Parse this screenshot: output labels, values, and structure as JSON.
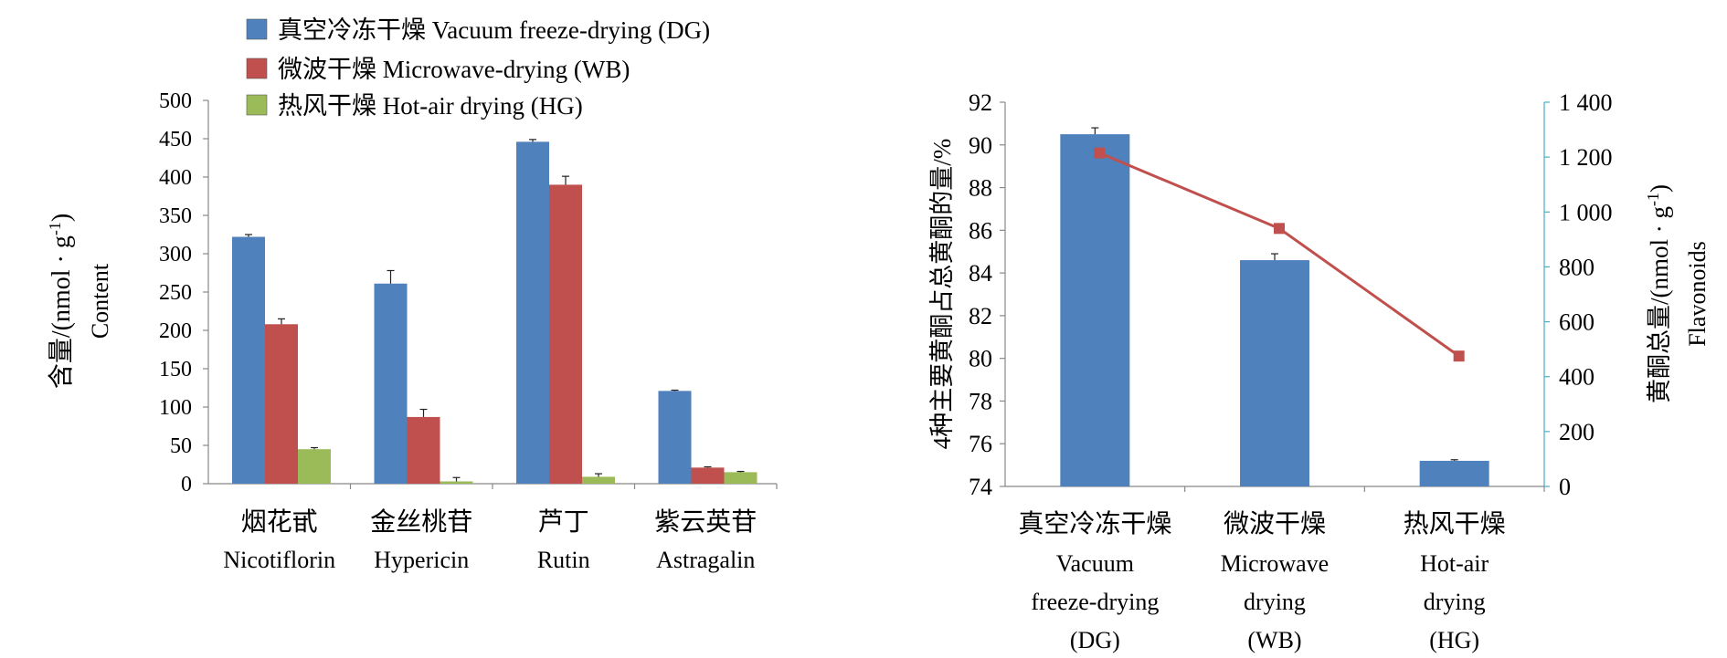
{
  "colors": {
    "dg": "#4f81bd",
    "wb": "#c0504d",
    "hg": "#9bbb59",
    "line": "#c0504d",
    "axis": "#888888",
    "right_axis": "#4bacc6"
  },
  "chart_data": [
    {
      "type": "bar",
      "xlabel": "",
      "ylabel_cn": "含量/(nmol · g-1)",
      "ylabel_en": "Content",
      "ylim": [
        0,
        500
      ],
      "yticks": [
        "0",
        "50",
        "100",
        "150",
        "200",
        "250",
        "300",
        "350",
        "400",
        "450",
        "500"
      ],
      "legend_position": "top",
      "categories": [
        {
          "cn": "烟花甙",
          "en": "Nicotiflorin"
        },
        {
          "cn": "金丝桃苷",
          "en": "Hypericin"
        },
        {
          "cn": "芦丁",
          "en": "Rutin"
        },
        {
          "cn": "紫云英苷",
          "en": "Astragalin"
        }
      ],
      "series": [
        {
          "name": "真空冷冻干燥 Vacuum freeze-drying (DG)",
          "key": "dg",
          "values": [
            322,
            261,
            446,
            121
          ],
          "errors": [
            3,
            17,
            3,
            1
          ]
        },
        {
          "name": "微波干燥 Microwave-drying (WB)",
          "key": "wb",
          "values": [
            208,
            87,
            390,
            21
          ],
          "errors": [
            7,
            10,
            11,
            1
          ]
        },
        {
          "name": "热风干燥 Hot-air drying (HG)",
          "key": "hg",
          "values": [
            45,
            3,
            9,
            15
          ],
          "errors": [
            2,
            5,
            4,
            1
          ]
        }
      ]
    },
    {
      "type": "bar",
      "ylabel_left": "4种主要黄酮占总黄酮的量/%",
      "ylabel_right_cn": "黄酮总量/(nmol · g-1)",
      "ylabel_right_en": "Flavonoids",
      "ylim_left": [
        74,
        92
      ],
      "yticks_left": [
        "74",
        "76",
        "78",
        "80",
        "82",
        "84",
        "86",
        "88",
        "90",
        "92"
      ],
      "ylim_right": [
        0,
        1400
      ],
      "yticks_right": [
        "0",
        "200",
        "400",
        "600",
        "800",
        "1 000",
        "1 200",
        "1 400"
      ],
      "categories": [
        {
          "cn": "真空冷冻干燥",
          "en": [
            "Vacuum",
            "freeze-drying",
            "(DG)"
          ]
        },
        {
          "cn": "微波干燥",
          "en": [
            "Microwave",
            "drying",
            "(WB)"
          ]
        },
        {
          "cn": "热风干燥",
          "en": [
            "Hot-air",
            "drying",
            "(HG)"
          ]
        }
      ],
      "bar_values": [
        90.5,
        84.6,
        75.2
      ],
      "bar_errors": [
        0.3,
        0.3,
        0.05
      ],
      "line_values": [
        1215,
        940,
        475
      ]
    }
  ]
}
